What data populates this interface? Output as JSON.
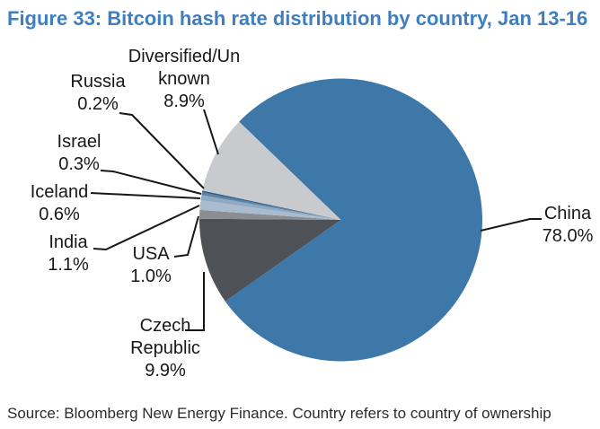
{
  "figure": {
    "title": "Figure 33: Bitcoin hash rate distribution by country, Jan 13-16",
    "source": "Source: Bloomberg New Energy Finance. Country refers to country of ownership"
  },
  "chart_data": {
    "type": "pie",
    "title": "Bitcoin hash rate distribution by country, Jan 13-16",
    "unit": "%",
    "total": 100,
    "legend": "none",
    "label_style": "outside labels with black leader lines, category name over percentage",
    "start_angle_math_deg": 136,
    "direction": "clockwise",
    "slices": [
      {
        "id": "china",
        "label": "China",
        "value": 78.0,
        "display_lines": [
          "China",
          "78.0%"
        ],
        "color": "#3d78a9"
      },
      {
        "id": "czech-republic",
        "label": "Czech Republic",
        "value": 9.9,
        "display_lines": [
          "Czech",
          "Republic",
          "9.9%"
        ],
        "color": "#4e5156"
      },
      {
        "id": "usa",
        "label": "USA",
        "value": 1.0,
        "display_lines": [
          "USA",
          "1.0%"
        ],
        "color": "#8a8d91"
      },
      {
        "id": "india",
        "label": "India",
        "value": 1.1,
        "display_lines": [
          "India",
          "1.1%"
        ],
        "color": "#a9bccf"
      },
      {
        "id": "iceland",
        "label": "Iceland",
        "value": 0.6,
        "display_lines": [
          "Iceland",
          "0.6%"
        ],
        "color": "#8fa9c2"
      },
      {
        "id": "israel",
        "label": "Israel",
        "value": 0.3,
        "display_lines": [
          "Israel",
          "0.3%"
        ],
        "color": "#5d80a3"
      },
      {
        "id": "russia",
        "label": "Russia",
        "value": 0.2,
        "display_lines": [
          "Russia",
          "0.2%"
        ],
        "color": "#30608c"
      },
      {
        "id": "diversified-unknown",
        "label": "Diversified/Unknown",
        "value": 8.9,
        "display_lines": [
          "Diversified/Un",
          "known",
          "8.9%"
        ],
        "color": "#c8cacd"
      }
    ],
    "colors": {
      "title_accent": "#3f7ebf",
      "leader_line": "#171717",
      "background": "#ffffff"
    }
  }
}
